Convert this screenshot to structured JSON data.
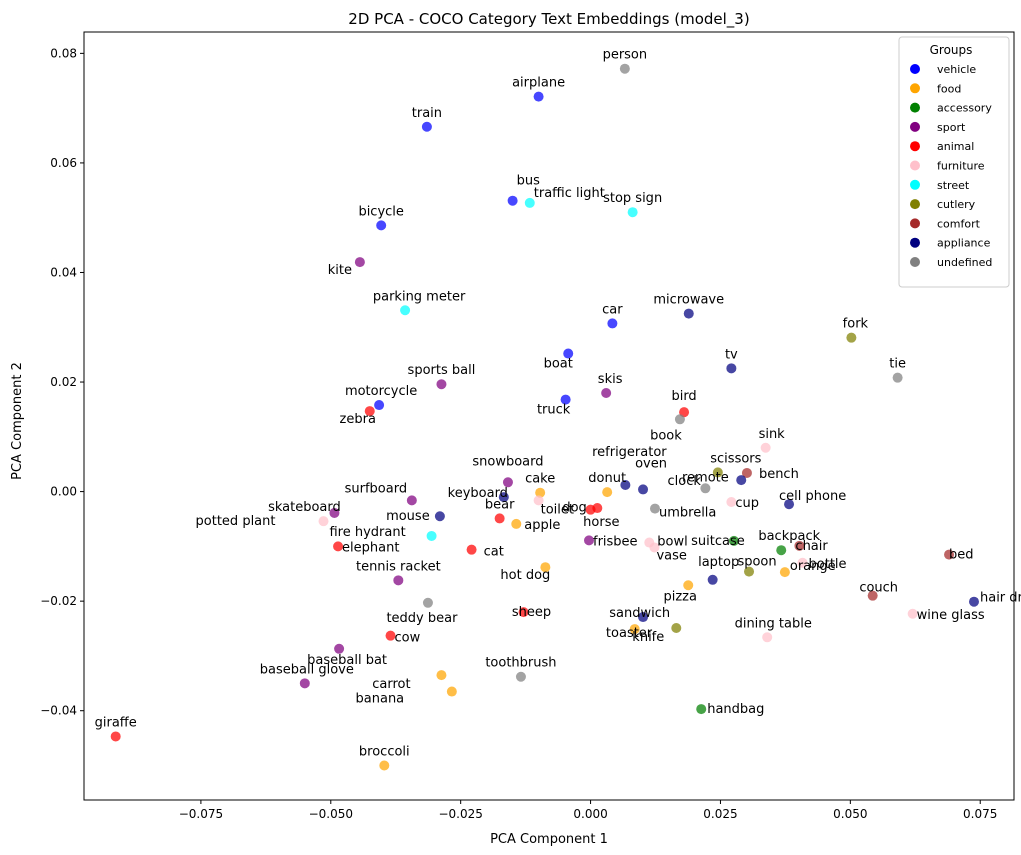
{
  "chart_data": {
    "type": "scatter",
    "title": "2D PCA - COCO Category Text Embeddings (model_3)",
    "xlabel": "PCA Component 1",
    "ylabel": "PCA Component 2",
    "xlim": [
      -0.0975,
      0.0815
    ],
    "ylim": [
      -0.0563,
      0.0839
    ],
    "xticks": [
      -0.075,
      -0.05,
      -0.025,
      0.0,
      0.025,
      0.05,
      0.075
    ],
    "xtick_labels": [
      "−0.075",
      "−0.050",
      "−0.025",
      "0.000",
      "0.025",
      "0.050",
      "0.075"
    ],
    "yticks": [
      -0.04,
      -0.02,
      0.0,
      0.02,
      0.04,
      0.06,
      0.08
    ],
    "ytick_labels": [
      "−0.04",
      "−0.02",
      "0.00",
      "0.02",
      "0.04",
      "0.06",
      "0.08"
    ],
    "grid": false,
    "legend": {
      "title": "Groups",
      "placement": "top-right",
      "entries": [
        {
          "name": "vehicle",
          "color": "#0000ff"
        },
        {
          "name": "food",
          "color": "#ffa500"
        },
        {
          "name": "accessory",
          "color": "#008000"
        },
        {
          "name": "sport",
          "color": "#800080"
        },
        {
          "name": "animal",
          "color": "#ff0000"
        },
        {
          "name": "furniture",
          "color": "#ffc0cb"
        },
        {
          "name": "street",
          "color": "#00ffff"
        },
        {
          "name": "cutlery",
          "color": "#808000"
        },
        {
          "name": "comfort",
          "color": "#a52a2a"
        },
        {
          "name": "appliance",
          "color": "#000080"
        },
        {
          "name": "undefined",
          "color": "#808080"
        }
      ]
    },
    "points": [
      {
        "label": "person",
        "group": "undefined",
        "x": 0.0066,
        "y": 0.0772
      },
      {
        "label": "airplane",
        "group": "vehicle",
        "x": -0.01,
        "y": 0.0721
      },
      {
        "label": "train",
        "group": "vehicle",
        "x": -0.0315,
        "y": 0.0666
      },
      {
        "label": "bus",
        "group": "vehicle",
        "x": -0.015,
        "y": 0.0531
      },
      {
        "label": "traffic light",
        "group": "street",
        "x": -0.0117,
        "y": 0.0527
      },
      {
        "label": "stop sign",
        "group": "street",
        "x": 0.0081,
        "y": 0.051
      },
      {
        "label": "bicycle",
        "group": "vehicle",
        "x": -0.0403,
        "y": 0.0486
      },
      {
        "label": "kite",
        "group": "sport",
        "x": -0.0444,
        "y": 0.0419
      },
      {
        "label": "parking meter",
        "group": "street",
        "x": -0.0357,
        "y": 0.0331
      },
      {
        "label": "car",
        "group": "vehicle",
        "x": 0.0042,
        "y": 0.0307
      },
      {
        "label": "microwave",
        "group": "appliance",
        "x": 0.0189,
        "y": 0.0325
      },
      {
        "label": "fork",
        "group": "cutlery",
        "x": 0.0502,
        "y": 0.0281
      },
      {
        "label": "boat",
        "group": "vehicle",
        "x": -0.0043,
        "y": 0.0252
      },
      {
        "label": "tv",
        "group": "appliance",
        "x": 0.0271,
        "y": 0.0225
      },
      {
        "label": "tie",
        "group": "undefined",
        "x": 0.0591,
        "y": 0.0208
      },
      {
        "label": "sports ball",
        "group": "sport",
        "x": -0.0287,
        "y": 0.0196
      },
      {
        "label": "skis",
        "group": "sport",
        "x": 0.003,
        "y": 0.018
      },
      {
        "label": "truck",
        "group": "vehicle",
        "x": -0.0048,
        "y": 0.0168
      },
      {
        "label": "motorcycle",
        "group": "vehicle",
        "x": -0.0407,
        "y": 0.0158
      },
      {
        "label": "zebra",
        "group": "animal",
        "x": -0.0425,
        "y": 0.0147
      },
      {
        "label": "bird",
        "group": "animal",
        "x": 0.018,
        "y": 0.0145
      },
      {
        "label": "book",
        "group": "undefined",
        "x": 0.0172,
        "y": 0.0132
      },
      {
        "label": "sink",
        "group": "furniture",
        "x": 0.0337,
        "y": 0.008
      },
      {
        "label": "scissors",
        "group": "cutlery",
        "x": 0.0245,
        "y": 0.0035
      },
      {
        "label": "bench",
        "group": "comfort",
        "x": 0.0301,
        "y": 0.0034
      },
      {
        "label": "refrigerator",
        "group": "appliance",
        "x": 0.0067,
        "y": 0.0012
      },
      {
        "label": "remote",
        "group": "undefined",
        "x": 0.0221,
        "y": 0.0006
      },
      {
        "label": "oven",
        "group": "appliance",
        "x": 0.0101,
        "y": 0.0004
      },
      {
        "label": "snowboard",
        "group": "sport",
        "x": -0.0159,
        "y": 0.0017
      },
      {
        "label": "donut",
        "group": "food",
        "x": 0.0032,
        "y": -0.0001
      },
      {
        "label": "cake",
        "group": "food",
        "x": -0.0097,
        "y": -0.0002
      },
      {
        "label": "keyboard",
        "group": "appliance",
        "x": -0.0167,
        "y": -0.001
      },
      {
        "label": "surfboard",
        "group": "sport",
        "x": -0.0344,
        "y": -0.0016
      },
      {
        "label": "toilet",
        "group": "furniture",
        "x": -0.01,
        "y": -0.0016
      },
      {
        "label": "cup",
        "group": "furniture",
        "x": 0.0271,
        "y": -0.0019
      },
      {
        "label": "clock",
        "group": "appliance",
        "x": 0.029,
        "y": 0.0021
      },
      {
        "label": "cell phone",
        "group": "appliance",
        "x": 0.0382,
        "y": -0.0023
      },
      {
        "label": "dog",
        "group": "animal",
        "x": 0.0,
        "y": -0.0033
      },
      {
        "label": "horse",
        "group": "animal",
        "x": 0.0013,
        "y": -0.003
      },
      {
        "label": "umbrella",
        "group": "undefined",
        "x": 0.0124,
        "y": -0.0031
      },
      {
        "label": "skateboard",
        "group": "sport",
        "x": -0.0493,
        "y": -0.0039
      },
      {
        "label": "mouse",
        "group": "appliance",
        "x": -0.029,
        "y": -0.0045
      },
      {
        "label": "bear",
        "group": "animal",
        "x": -0.0175,
        "y": -0.0049
      },
      {
        "label": "potted plant",
        "group": "furniture",
        "x": -0.0514,
        "y": -0.0054
      },
      {
        "label": "apple",
        "group": "food",
        "x": -0.0143,
        "y": -0.0059
      },
      {
        "label": "fire hydrant",
        "group": "street",
        "x": -0.0306,
        "y": -0.0081
      },
      {
        "label": "frisbee",
        "group": "sport",
        "x": -0.0003,
        "y": -0.0089
      },
      {
        "label": "bowl",
        "group": "furniture",
        "x": 0.0113,
        "y": -0.0093
      },
      {
        "label": "vase",
        "group": "furniture",
        "x": 0.0123,
        "y": -0.0102
      },
      {
        "label": "suitcase",
        "group": "accessory",
        "x": 0.0276,
        "y": -0.009
      },
      {
        "label": "backpack",
        "group": "accessory",
        "x": 0.0367,
        "y": -0.0107
      },
      {
        "label": "chair",
        "group": "comfort",
        "x": 0.0402,
        "y": -0.0099
      },
      {
        "label": "bottle",
        "group": "furniture",
        "x": 0.0408,
        "y": -0.013
      },
      {
        "label": "elephant",
        "group": "animal",
        "x": -0.0486,
        "y": -0.01
      },
      {
        "label": "cat",
        "group": "animal",
        "x": -0.0229,
        "y": -0.0106
      },
      {
        "label": "hot dog",
        "group": "food",
        "x": -0.0087,
        "y": -0.0138
      },
      {
        "label": "spoon",
        "group": "cutlery",
        "x": 0.0305,
        "y": -0.0146
      },
      {
        "label": "orange",
        "group": "food",
        "x": 0.0374,
        "y": -0.0147
      },
      {
        "label": "pizza",
        "group": "food",
        "x": 0.0188,
        "y": -0.0171
      },
      {
        "label": "laptop",
        "group": "appliance",
        "x": 0.0235,
        "y": -0.0161
      },
      {
        "label": "bed",
        "group": "comfort",
        "x": 0.069,
        "y": -0.0115
      },
      {
        "label": "tennis racket",
        "group": "sport",
        "x": -0.037,
        "y": -0.0162
      },
      {
        "label": "couch",
        "group": "comfort",
        "x": 0.0543,
        "y": -0.019
      },
      {
        "label": "hair drier",
        "group": "appliance",
        "x": 0.0738,
        "y": -0.0201
      },
      {
        "label": "teddy bear",
        "group": "undefined",
        "x": -0.0313,
        "y": -0.0203
      },
      {
        "label": "sheep",
        "group": "animal",
        "x": -0.0129,
        "y": -0.022
      },
      {
        "label": "wine glass",
        "group": "furniture",
        "x": 0.062,
        "y": -0.0223
      },
      {
        "label": "toaster",
        "group": "appliance",
        "x": 0.0101,
        "y": -0.0229
      },
      {
        "label": "sandwich",
        "group": "food",
        "x": 0.0085,
        "y": -0.0251
      },
      {
        "label": "knife",
        "group": "cutlery",
        "x": 0.0165,
        "y": -0.0249
      },
      {
        "label": "cow",
        "group": "animal",
        "x": -0.0385,
        "y": -0.0263
      },
      {
        "label": "dining table",
        "group": "furniture",
        "x": 0.034,
        "y": -0.0266
      },
      {
        "label": "baseball bat",
        "group": "sport",
        "x": -0.0484,
        "y": -0.0287
      },
      {
        "label": "carrot",
        "group": "food",
        "x": -0.0287,
        "y": -0.0335
      },
      {
        "label": "toothbrush",
        "group": "undefined",
        "x": -0.0134,
        "y": -0.0338
      },
      {
        "label": "baseball glove",
        "group": "sport",
        "x": -0.055,
        "y": -0.035
      },
      {
        "label": "banana",
        "group": "food",
        "x": -0.0267,
        "y": -0.0365
      },
      {
        "label": "handbag",
        "group": "accessory",
        "x": 0.0213,
        "y": -0.0397
      },
      {
        "label": "giraffe",
        "group": "animal",
        "x": -0.0914,
        "y": -0.0447
      },
      {
        "label": "broccoli",
        "group": "food",
        "x": -0.0397,
        "y": -0.05
      }
    ]
  }
}
